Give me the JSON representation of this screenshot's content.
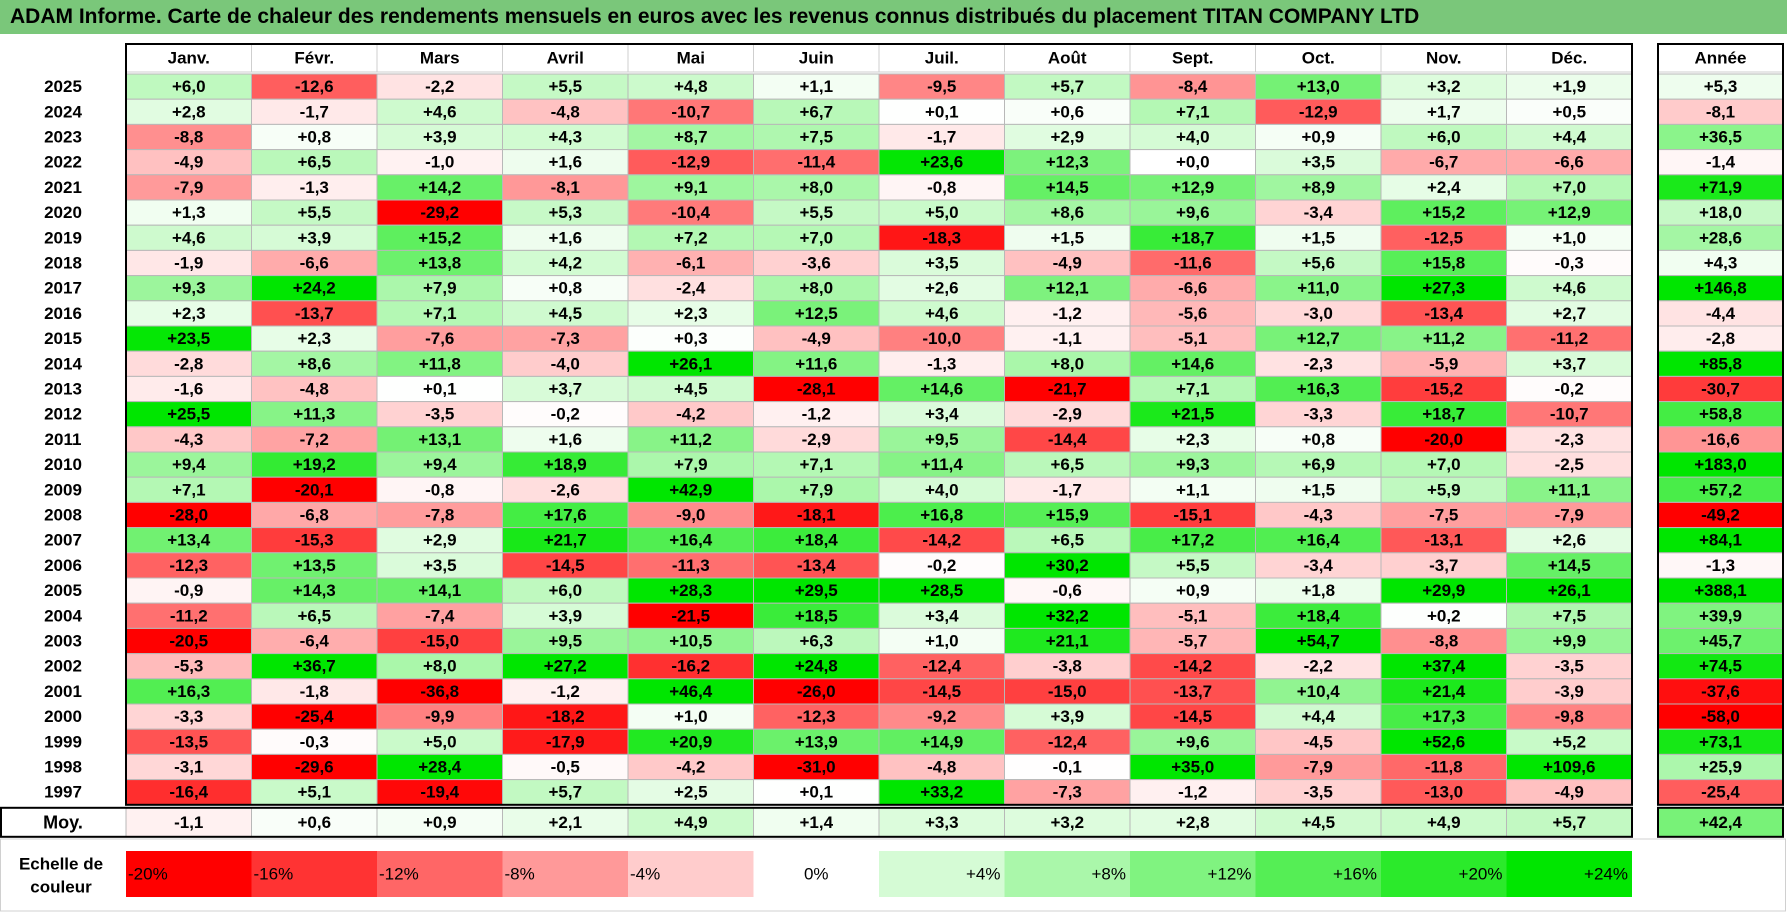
{
  "title": "ADAM Informe. Carte de chaleur des rendements mensuels en euros avec les revenus connus distribués du placement TITAN COMPANY LTD",
  "chart_data": {
    "type": "heatmap",
    "title": "ADAM Informe. Carte de chaleur des rendements mensuels en euros avec les revenus connus distribués du placement TITAN COMPANY LTD",
    "months": [
      "Janv.",
      "Févr.",
      "Mars",
      "Avril",
      "Mai",
      "Juin",
      "Juil.",
      "Août",
      "Sept.",
      "Oct.",
      "Nov.",
      "Déc."
    ],
    "annual_header": "Année",
    "average_label": "Moy.",
    "rows": [
      {
        "year": "2025",
        "values": [
          "+6,0",
          "-12,6",
          "-2,2",
          "+5,5",
          "+4,8",
          "+1,1",
          "-9,5",
          "+5,7",
          "-8,4",
          "+13,0",
          "+3,2",
          "+1,9"
        ],
        "annual": "+5,3"
      },
      {
        "year": "2024",
        "values": [
          "+2,8",
          "-1,7",
          "+4,6",
          "-4,8",
          "-10,7",
          "+6,7",
          "+0,1",
          "+0,6",
          "+7,1",
          "-12,9",
          "+1,7",
          "+0,5"
        ],
        "annual": "-8,1"
      },
      {
        "year": "2023",
        "values": [
          "-8,8",
          "+0,8",
          "+3,9",
          "+4,3",
          "+8,7",
          "+7,5",
          "-1,7",
          "+2,9",
          "+4,0",
          "+0,9",
          "+6,0",
          "+4,4"
        ],
        "annual": "+36,5"
      },
      {
        "year": "2022",
        "values": [
          "-4,9",
          "+6,5",
          "-1,0",
          "+1,6",
          "-12,9",
          "-11,4",
          "+23,6",
          "+12,3",
          "+0,0",
          "+3,5",
          "-6,7",
          "-6,6"
        ],
        "annual": "-1,4"
      },
      {
        "year": "2021",
        "values": [
          "-7,9",
          "-1,3",
          "+14,2",
          "-8,1",
          "+9,1",
          "+8,0",
          "-0,8",
          "+14,5",
          "+12,9",
          "+8,9",
          "+2,4",
          "+7,0"
        ],
        "annual": "+71,9"
      },
      {
        "year": "2020",
        "values": [
          "+1,3",
          "+5,5",
          "-29,2",
          "+5,3",
          "-10,4",
          "+5,5",
          "+5,0",
          "+8,6",
          "+9,6",
          "-3,4",
          "+15,2",
          "+12,9"
        ],
        "annual": "+18,0"
      },
      {
        "year": "2019",
        "values": [
          "+4,6",
          "+3,9",
          "+15,2",
          "+1,6",
          "+7,2",
          "+7,0",
          "-18,3",
          "+1,5",
          "+18,7",
          "+1,5",
          "-12,5",
          "+1,0"
        ],
        "annual": "+28,6"
      },
      {
        "year": "2018",
        "values": [
          "-1,9",
          "-6,6",
          "+13,8",
          "+4,2",
          "-6,1",
          "-3,6",
          "+3,5",
          "-4,9",
          "-11,6",
          "+5,6",
          "+15,8",
          "-0,3"
        ],
        "annual": "+4,3"
      },
      {
        "year": "2017",
        "values": [
          "+9,3",
          "+24,2",
          "+7,9",
          "+0,8",
          "-2,4",
          "+8,0",
          "+2,6",
          "+12,1",
          "-6,6",
          "+11,0",
          "+27,3",
          "+4,6"
        ],
        "annual": "+146,8"
      },
      {
        "year": "2016",
        "values": [
          "+2,3",
          "-13,7",
          "+7,1",
          "+4,5",
          "+2,3",
          "+12,5",
          "+4,6",
          "-1,2",
          "-5,6",
          "-3,0",
          "-13,4",
          "+2,7"
        ],
        "annual": "-4,4"
      },
      {
        "year": "2015",
        "values": [
          "+23,5",
          "+2,3",
          "-7,6",
          "-7,3",
          "+0,3",
          "-4,9",
          "-10,0",
          "-1,1",
          "-5,1",
          "+12,7",
          "+11,2",
          "-11,2"
        ],
        "annual": "-2,8"
      },
      {
        "year": "2014",
        "values": [
          "-2,8",
          "+8,6",
          "+11,8",
          "-4,0",
          "+26,1",
          "+11,6",
          "-1,3",
          "+8,0",
          "+14,6",
          "-2,3",
          "-5,9",
          "+3,7"
        ],
        "annual": "+85,8"
      },
      {
        "year": "2013",
        "values": [
          "-1,6",
          "-4,8",
          "+0,1",
          "+3,7",
          "+4,5",
          "-28,1",
          "+14,6",
          "-21,7",
          "+7,1",
          "+16,3",
          "-15,2",
          "-0,2"
        ],
        "annual": "-30,7"
      },
      {
        "year": "2012",
        "values": [
          "+25,5",
          "+11,3",
          "-3,5",
          "-0,2",
          "-4,2",
          "-1,2",
          "+3,4",
          "-2,9",
          "+21,5",
          "-3,3",
          "+18,7",
          "-10,7"
        ],
        "annual": "+58,8"
      },
      {
        "year": "2011",
        "values": [
          "-4,3",
          "-7,2",
          "+13,1",
          "+1,6",
          "+11,2",
          "-2,9",
          "+9,5",
          "-14,4",
          "+2,3",
          "+0,8",
          "-20,0",
          "-2,3"
        ],
        "annual": "-16,6"
      },
      {
        "year": "2010",
        "values": [
          "+9,4",
          "+19,2",
          "+9,4",
          "+18,9",
          "+7,9",
          "+7,1",
          "+11,4",
          "+6,5",
          "+9,3",
          "+6,9",
          "+7,0",
          "-2,5"
        ],
        "annual": "+183,0"
      },
      {
        "year": "2009",
        "values": [
          "+7,1",
          "-20,1",
          "-0,8",
          "-2,6",
          "+42,9",
          "+7,9",
          "+4,0",
          "-1,7",
          "+1,1",
          "+1,5",
          "+5,9",
          "+11,1"
        ],
        "annual": "+57,2"
      },
      {
        "year": "2008",
        "values": [
          "-28,0",
          "-6,8",
          "-7,8",
          "+17,6",
          "-9,0",
          "-18,1",
          "+16,8",
          "+15,9",
          "-15,1",
          "-4,3",
          "-7,5",
          "-7,9"
        ],
        "annual": "-49,2"
      },
      {
        "year": "2007",
        "values": [
          "+13,4",
          "-15,3",
          "+2,9",
          "+21,7",
          "+16,4",
          "+18,4",
          "-14,2",
          "+6,5",
          "+17,2",
          "+16,4",
          "-13,1",
          "+2,6"
        ],
        "annual": "+84,1"
      },
      {
        "year": "2006",
        "values": [
          "-12,3",
          "+13,5",
          "+3,5",
          "-14,5",
          "-11,3",
          "-13,4",
          "-0,2",
          "+30,2",
          "+5,5",
          "-3,4",
          "-3,7",
          "+14,5"
        ],
        "annual": "-1,3"
      },
      {
        "year": "2005",
        "values": [
          "-0,9",
          "+14,3",
          "+14,1",
          "+6,0",
          "+28,3",
          "+29,5",
          "+28,5",
          "-0,6",
          "+0,9",
          "+1,8",
          "+29,9",
          "+26,1"
        ],
        "annual": "+388,1"
      },
      {
        "year": "2004",
        "values": [
          "-11,2",
          "+6,5",
          "-7,4",
          "+3,9",
          "-21,5",
          "+18,5",
          "+3,4",
          "+32,2",
          "-5,1",
          "+18,4",
          "+0,2",
          "+7,5"
        ],
        "annual": "+39,9"
      },
      {
        "year": "2003",
        "values": [
          "-20,5",
          "-6,4",
          "-15,0",
          "+9,5",
          "+10,5",
          "+6,3",
          "+1,0",
          "+21,1",
          "-5,7",
          "+54,7",
          "-8,8",
          "+9,9"
        ],
        "annual": "+45,7"
      },
      {
        "year": "2002",
        "values": [
          "-5,3",
          "+36,7",
          "+8,0",
          "+27,2",
          "-16,2",
          "+24,8",
          "-12,4",
          "-3,8",
          "-14,2",
          "-2,2",
          "+37,4",
          "-3,5"
        ],
        "annual": "+74,5"
      },
      {
        "year": "2001",
        "values": [
          "+16,3",
          "-1,8",
          "-36,8",
          "-1,2",
          "+46,4",
          "-26,0",
          "-14,5",
          "-15,0",
          "-13,7",
          "+10,4",
          "+21,4",
          "-3,9"
        ],
        "annual": "-37,6"
      },
      {
        "year": "2000",
        "values": [
          "-3,3",
          "-25,4",
          "-9,9",
          "-18,2",
          "+1,0",
          "-12,3",
          "-9,2",
          "+3,9",
          "-14,5",
          "+4,4",
          "+17,3",
          "-9,8"
        ],
        "annual": "-58,0"
      },
      {
        "year": "1999",
        "values": [
          "-13,5",
          "-0,3",
          "+5,0",
          "-17,9",
          "+20,9",
          "+13,9",
          "+14,9",
          "-12,4",
          "+9,6",
          "-4,5",
          "+52,6",
          "+5,2"
        ],
        "annual": "+73,1"
      },
      {
        "year": "1998",
        "values": [
          "-3,1",
          "-29,6",
          "+28,4",
          "-0,5",
          "-4,2",
          "-31,0",
          "-4,8",
          "-0,1",
          "+35,0",
          "-7,9",
          "-11,8",
          "+109,6"
        ],
        "annual": "+25,9"
      },
      {
        "year": "1997",
        "values": [
          "-16,4",
          "+5,1",
          "-19,4",
          "+5,7",
          "+2,5",
          "+0,1",
          "+33,2",
          "-7,3",
          "-1,2",
          "-3,5",
          "-13,0",
          "-4,9"
        ],
        "annual": "-25,4"
      }
    ],
    "averages": {
      "values": [
        "-1,1",
        "+0,6",
        "+0,9",
        "+2,1",
        "+4,9",
        "+1,4",
        "+3,3",
        "+3,2",
        "+2,8",
        "+4,5",
        "+4,9",
        "+5,7"
      ],
      "annual": "+42,4"
    },
    "scale_label_lines": [
      "Echelle de",
      "couleur"
    ],
    "scale": [
      {
        "label": "-20%",
        "value": -20
      },
      {
        "label": "-16%",
        "value": -16
      },
      {
        "label": "-12%",
        "value": -12
      },
      {
        "label": "-8%",
        "value": -8
      },
      {
        "label": "-4%",
        "value": -4
      },
      {
        "label": "0%",
        "value": 0
      },
      {
        "label": "+4%",
        "value": 4
      },
      {
        "label": "+8%",
        "value": 8
      },
      {
        "label": "+12%",
        "value": 12
      },
      {
        "label": "+16%",
        "value": 16
      },
      {
        "label": "+20%",
        "value": 20
      },
      {
        "label": "+24%",
        "value": 24
      }
    ],
    "color_scale": {
      "negative_max": "#ff0000",
      "neutral": "#ffffff",
      "positive_max": "#00e600",
      "annual_clip": [
        -40,
        80
      ]
    }
  }
}
